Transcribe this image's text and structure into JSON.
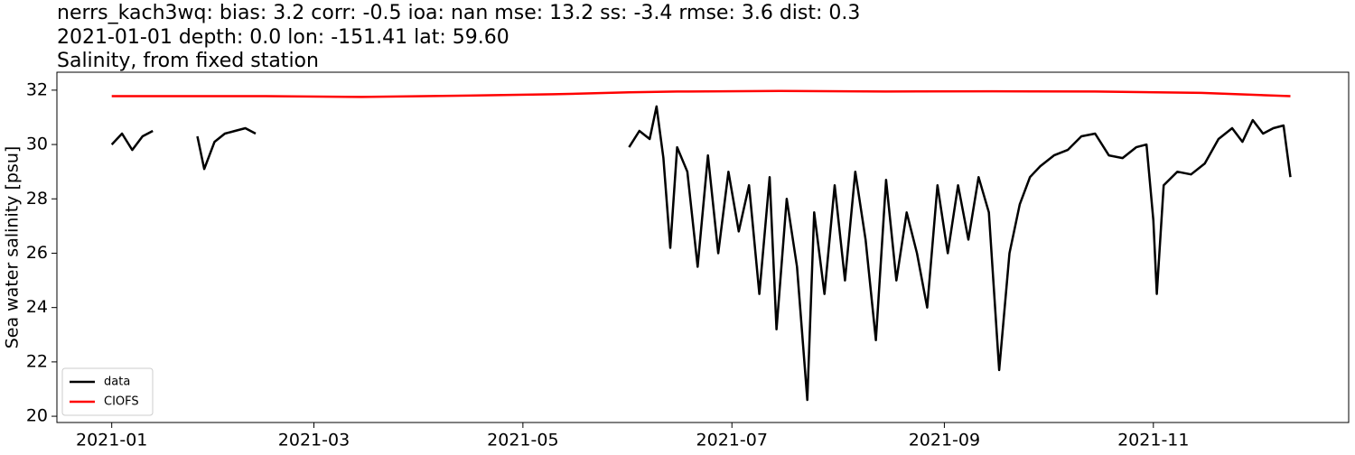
{
  "chart_data": {
    "type": "line",
    "title": [
      "nerrs_kach3wq: bias: 3.2  corr: -0.5  ioa: nan  mse: 13.2  ss: -3.4  rmse: 3.6  dist: 0.3",
      "2021-01-01 depth: 0.0 lon: -151.41 lat: 59.60",
      "Salinity, from fixed station"
    ],
    "y_label": "Sea water salinity [psu]",
    "xlim": [
      "2020-12-16",
      "2021-12-28"
    ],
    "xticks": [
      "2021-01",
      "2021-03",
      "2021-05",
      "2021-07",
      "2021-09",
      "2021-11"
    ],
    "ylim": [
      19.77,
      32.66
    ],
    "yticks": [
      20,
      22,
      24,
      26,
      28,
      30,
      32
    ],
    "legend": "lower left",
    "series": [
      {
        "name": "data",
        "color": "#000000",
        "x": [
          "2021-01-01",
          "2021-01-04",
          "2021-01-07",
          "2021-01-10",
          "2021-01-13",
          "2021-03-01",
          "2021-01-26",
          "2021-01-28",
          "2021-01-31",
          "2021-02-03",
          "2021-02-06",
          "2021-02-09",
          "2021-02-12",
          "2021-04-01",
          "2021-06-01",
          "2021-06-04",
          "2021-06-07",
          "2021-06-09",
          "2021-06-11",
          "2021-06-13",
          "2021-06-15",
          "2021-06-18",
          "2021-06-21",
          "2021-06-24",
          "2021-06-27",
          "2021-06-30",
          "2021-07-03",
          "2021-07-06",
          "2021-07-09",
          "2021-07-12",
          "2021-07-14",
          "2021-07-17",
          "2021-07-20",
          "2021-07-23",
          "2021-07-25",
          "2021-07-28",
          "2021-07-31",
          "2021-08-03",
          "2021-08-06",
          "2021-08-09",
          "2021-08-12",
          "2021-08-15",
          "2021-08-18",
          "2021-08-21",
          "2021-08-24",
          "2021-08-27",
          "2021-08-30",
          "2021-09-02",
          "2021-09-05",
          "2021-09-08",
          "2021-09-11",
          "2021-09-14",
          "2021-09-17",
          "2021-09-20",
          "2021-09-23",
          "2021-09-26",
          "2021-09-29",
          "2021-10-03",
          "2021-10-07",
          "2021-10-11",
          "2021-10-15",
          "2021-10-19",
          "2021-10-23",
          "2021-10-27",
          "2021-10-30",
          "2021-11-01",
          "2021-11-02",
          "2021-11-04",
          "2021-11-08",
          "2021-11-12",
          "2021-11-16",
          "2021-11-20",
          "2021-11-24",
          "2021-11-27",
          "2021-11-30",
          "2021-12-03",
          "2021-12-06",
          "2021-12-09",
          "2021-12-11"
        ],
        "values": [
          30.0,
          30.4,
          29.8,
          30.3,
          30.5,
          null,
          30.3,
          29.1,
          30.1,
          30.4,
          30.5,
          30.6,
          30.4,
          null,
          29.9,
          30.5,
          30.2,
          31.4,
          29.5,
          26.2,
          29.9,
          29.0,
          25.5,
          29.6,
          26.0,
          29.0,
          26.8,
          28.5,
          24.5,
          28.8,
          23.2,
          28.0,
          25.5,
          20.6,
          27.5,
          24.5,
          28.5,
          25.0,
          29.0,
          26.5,
          22.8,
          28.7,
          25.0,
          27.5,
          26.0,
          24.0,
          28.5,
          26.0,
          28.5,
          26.5,
          28.8,
          27.5,
          21.7,
          26.0,
          27.8,
          28.8,
          29.2,
          29.6,
          29.8,
          30.3,
          30.4,
          29.6,
          29.5,
          29.9,
          30.0,
          27.2,
          24.5,
          28.5,
          29.0,
          28.9,
          29.3,
          30.2,
          30.6,
          30.1,
          30.9,
          30.4,
          30.6,
          30.7,
          28.8
        ]
      },
      {
        "name": "CIOFS",
        "color": "#ff0000",
        "x": [
          "2021-01-01",
          "2021-02-15",
          "2021-03-15",
          "2021-04-15",
          "2021-05-10",
          "2021-06-01",
          "2021-06-15",
          "2021-07-15",
          "2021-08-15",
          "2021-09-15",
          "2021-10-15",
          "2021-11-15",
          "2021-12-11"
        ],
        "values": [
          31.78,
          31.78,
          31.75,
          31.8,
          31.85,
          31.92,
          31.95,
          31.97,
          31.95,
          31.96,
          31.95,
          31.9,
          31.78
        ]
      }
    ]
  }
}
